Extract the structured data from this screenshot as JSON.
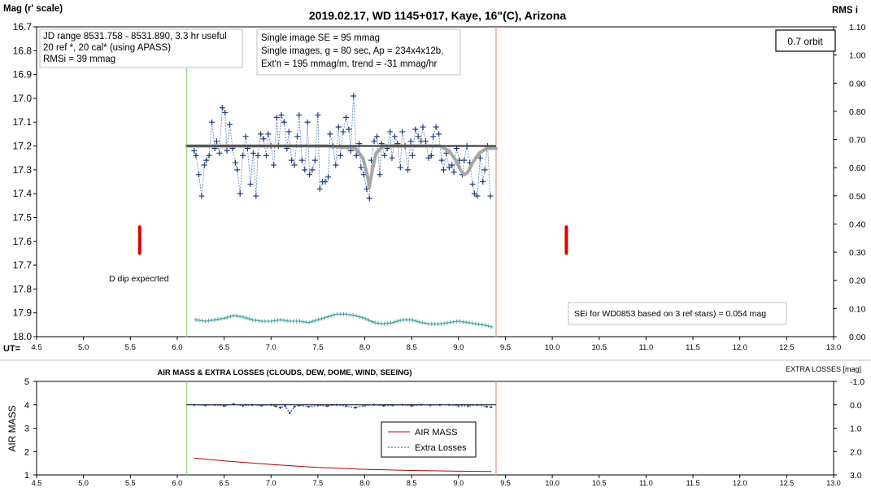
{
  "chart_data": [
    {
      "type": "scatter",
      "title": "2019.02.17, WD 1145+017, Kaye, 16\"(C), Arizona",
      "ylabel": "Mag (r' scale)",
      "y2label": "RMS i",
      "xlabel": "UT=",
      "xlim": [
        4.5,
        13.0
      ],
      "ylim": [
        16.7,
        18.0
      ],
      "y_inverted": true,
      "y2lim": [
        0.0,
        1.1
      ],
      "x_ticks": [
        "4.5",
        "5.0",
        "5.5",
        "6.0",
        "6.5",
        "7.0",
        "7.5",
        "8.0",
        "8.5",
        "9.0",
        "9.5",
        "10.0",
        "10.5",
        "11.0",
        "11.5",
        "12.0",
        "12.5",
        "13.0"
      ],
      "y_ticks": [
        "16.7",
        "16.8",
        "16.9",
        "17.0",
        "17.1",
        "17.2",
        "17.3",
        "17.4",
        "17.5",
        "17.6",
        "17.7",
        "17.8",
        "17.9",
        "18.0"
      ],
      "y2_ticks": [
        "1.10",
        "1.00",
        "0.90",
        "0.80",
        "0.70",
        "0.60",
        "0.50",
        "0.40",
        "0.30",
        "0.20",
        "0.10",
        "0.00"
      ],
      "grid": false,
      "annotations": {
        "box1": [
          "JD range 8531.758 - 8531.890, 3.3 hr useful",
          "20 ref *, 20 cal* (using APASS)",
          "RMSi = 39 mmag"
        ],
        "box2": [
          "Single image SE = 95 mmag",
          "Single images, g = 80 sec, Ap = 234x4x12b,",
          "Ext'n = 195 mmag/m, trend = -31 mmag/hr"
        ],
        "orbit": "0.7 orbit",
        "sei": "SEi for WD0853 based on 3 ref stars) = 0.054 mag",
        "dip": "D dip expecrted"
      },
      "markers": {
        "start_line_x": 6.1,
        "end_line_x": 9.4,
        "dip_markers": [
          {
            "x": 5.6,
            "y_range": [
              17.54,
              17.65
            ]
          },
          {
            "x": 10.15,
            "y_range": [
              17.54,
              17.65
            ]
          }
        ]
      },
      "colors": {
        "data": "#1f3d7a",
        "model": "#a6a6a6",
        "baseline": "#404040",
        "rms": "#4aa3a8",
        "start": "#a9d18e",
        "end": "#f4a6a6",
        "dip": "#e00000"
      },
      "series": [
        {
          "name": "",
          "role": "data",
          "x": [
            6.18,
            6.2,
            6.23,
            6.26,
            6.29,
            6.31,
            6.34,
            6.37,
            6.4,
            6.42,
            6.45,
            6.48,
            6.51,
            6.53,
            6.56,
            6.59,
            6.62,
            6.64,
            6.67,
            6.7,
            6.73,
            6.75,
            6.78,
            6.81,
            6.84,
            6.86,
            6.89,
            6.92,
            6.95,
            6.97,
            7.0,
            7.03,
            7.06,
            7.08,
            7.11,
            7.14,
            7.17,
            7.19,
            7.22,
            7.25,
            7.28,
            7.3,
            7.33,
            7.36,
            7.39,
            7.41,
            7.44,
            7.47,
            7.5,
            7.52,
            7.55,
            7.58,
            7.61,
            7.63,
            7.66,
            7.69,
            7.72,
            7.74,
            7.77,
            7.8,
            7.83,
            7.85,
            7.88,
            7.91,
            7.94,
            7.96,
            7.99,
            8.02,
            8.05,
            8.07,
            8.1,
            8.13,
            8.16,
            8.18,
            8.21,
            8.24,
            8.27,
            8.29,
            8.32,
            8.35,
            8.38,
            8.4,
            8.43,
            8.46,
            8.49,
            8.51,
            8.54,
            8.57,
            8.6,
            8.62,
            8.65,
            8.68,
            8.71,
            8.73,
            8.76,
            8.79,
            8.82,
            8.84,
            8.87,
            8.9,
            8.93,
            8.95,
            8.98,
            9.01,
            9.04,
            9.06,
            9.09,
            9.12,
            9.15,
            9.17,
            9.2,
            9.23,
            9.26,
            9.28,
            9.31,
            9.34
          ],
          "y": [
            17.22,
            17.24,
            17.32,
            17.41,
            17.28,
            17.26,
            17.24,
            17.1,
            17.21,
            17.18,
            17.23,
            17.04,
            17.06,
            17.22,
            17.11,
            17.21,
            17.27,
            17.3,
            17.4,
            17.24,
            17.16,
            17.21,
            17.36,
            17.23,
            17.41,
            17.24,
            17.15,
            17.17,
            17.24,
            17.15,
            17.2,
            17.28,
            17.08,
            17.2,
            17.07,
            17.1,
            17.21,
            17.14,
            17.26,
            17.28,
            17.16,
            17.07,
            17.26,
            17.3,
            17.1,
            17.32,
            17.3,
            17.26,
            17.07,
            17.38,
            17.35,
            17.35,
            17.33,
            17.15,
            17.2,
            17.28,
            17.12,
            17.24,
            17.14,
            17.08,
            17.13,
            17.22,
            16.99,
            17.24,
            17.19,
            17.29,
            17.32,
            17.38,
            17.42,
            17.26,
            17.18,
            17.16,
            17.32,
            17.19,
            17.24,
            17.21,
            17.14,
            17.25,
            17.16,
            17.19,
            17.29,
            17.14,
            17.2,
            17.3,
            17.18,
            17.24,
            17.13,
            17.16,
            17.18,
            17.12,
            17.18,
            17.25,
            17.24,
            17.16,
            17.12,
            17.15,
            17.26,
            17.3,
            17.23,
            17.29,
            17.28,
            17.31,
            17.21,
            17.26,
            17.32,
            17.26,
            17.2,
            17.27,
            17.36,
            17.4,
            17.41,
            17.25,
            17.35,
            17.3,
            17.2,
            17.41
          ]
        },
        {
          "name": "",
          "role": "model",
          "x": [
            6.1,
            7.6,
            7.9,
            7.98,
            8.02,
            8.05,
            8.08,
            8.12,
            8.2,
            8.5,
            8.8,
            8.9,
            8.97,
            9.02,
            9.06,
            9.1,
            9.15,
            9.22,
            9.3,
            9.4
          ],
          "y": [
            17.2,
            17.2,
            17.21,
            17.25,
            17.31,
            17.37,
            17.3,
            17.23,
            17.2,
            17.2,
            17.2,
            17.22,
            17.26,
            17.3,
            17.32,
            17.31,
            17.27,
            17.23,
            17.21,
            17.21
          ]
        },
        {
          "name": "",
          "role": "baseline",
          "x": [
            6.1,
            9.4
          ],
          "y": [
            17.2,
            17.2
          ]
        },
        {
          "name": "",
          "role": "rms",
          "axis": "y2",
          "x": [
            6.2,
            6.3,
            6.4,
            6.5,
            6.6,
            6.7,
            6.8,
            6.9,
            7.0,
            7.1,
            7.2,
            7.3,
            7.4,
            7.5,
            7.6,
            7.7,
            7.8,
            7.9,
            8.0,
            8.1,
            8.2,
            8.3,
            8.4,
            8.5,
            8.6,
            8.7,
            8.8,
            8.9,
            9.0,
            9.1,
            9.2,
            9.3,
            9.35
          ],
          "y": [
            0.06,
            0.055,
            0.06,
            0.065,
            0.075,
            0.07,
            0.06,
            0.055,
            0.055,
            0.06,
            0.055,
            0.055,
            0.05,
            0.06,
            0.07,
            0.08,
            0.08,
            0.075,
            0.065,
            0.05,
            0.045,
            0.05,
            0.06,
            0.06,
            0.05,
            0.045,
            0.045,
            0.05,
            0.055,
            0.05,
            0.045,
            0.04,
            0.035
          ]
        }
      ]
    },
    {
      "type": "line",
      "title": "AIR MASS & EXTRA LOSSES (CLOUDS, DEW, DOME, WIND, SEEING)",
      "ylabel": "AIR MASS",
      "y2label": "EXTRA LOSSES [mag]",
      "xlim": [
        4.5,
        13.0
      ],
      "ylim": [
        1,
        5
      ],
      "y2lim": [
        3.0,
        -1.0
      ],
      "x_ticks": [
        "4.5",
        "5.0",
        "5.5",
        "6.0",
        "6.5",
        "7.0",
        "7.5",
        "8.0",
        "8.5",
        "9.0",
        "9.5",
        "10.0",
        "10.5",
        "11.0",
        "11.5",
        "12.0",
        "12.5",
        "13.0"
      ],
      "y_ticks": [
        "5",
        "4",
        "3",
        "2",
        "1"
      ],
      "y2_ticks": [
        "-1.0",
        "0.0",
        "1.0",
        "2.0",
        "3.0"
      ],
      "grid": false,
      "legend": "center",
      "markers": {
        "start_line_x": 6.1,
        "end_line_x": 9.4
      },
      "series": [
        {
          "name": "AIR MASS",
          "color": "#c00000",
          "axis": "y",
          "x": [
            6.18,
            6.5,
            7.0,
            7.5,
            8.0,
            8.5,
            9.0,
            9.35
          ],
          "y": [
            1.72,
            1.6,
            1.45,
            1.32,
            1.24,
            1.19,
            1.16,
            1.15
          ]
        },
        {
          "name": "Extra Losses",
          "color": "#1f3da0",
          "axis": "y2",
          "x": [
            6.18,
            6.3,
            6.4,
            6.5,
            6.6,
            6.7,
            6.8,
            6.9,
            7.0,
            7.05,
            7.1,
            7.15,
            7.2,
            7.25,
            7.3,
            7.4,
            7.5,
            7.6,
            7.7,
            7.8,
            7.9,
            8.0,
            8.1,
            8.2,
            8.3,
            8.4,
            8.5,
            8.6,
            8.7,
            8.8,
            8.9,
            9.0,
            9.1,
            9.2,
            9.3,
            9.35
          ],
          "y": [
            0.0,
            0.02,
            0.0,
            0.05,
            -0.03,
            0.04,
            0.0,
            0.03,
            0.0,
            0.06,
            0.12,
            0.05,
            0.35,
            0.08,
            0.02,
            0.08,
            0.02,
            0.05,
            0.0,
            0.06,
            0.12,
            0.03,
            0.0,
            0.04,
            0.02,
            0.0,
            0.04,
            0.0,
            0.02,
            0.0,
            0.0,
            0.04,
            0.05,
            0.0,
            0.08,
            0.1
          ]
        }
      ]
    }
  ]
}
